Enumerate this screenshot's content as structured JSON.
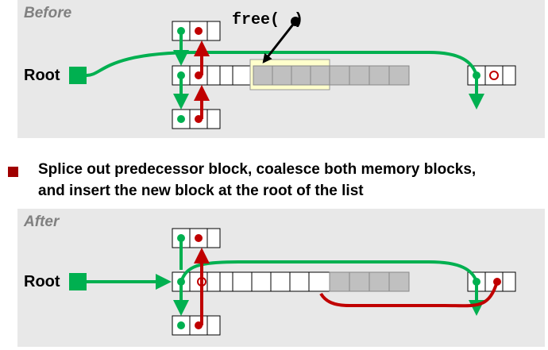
{
  "before": {
    "title": "Before",
    "root_label": "Root",
    "free_call": "free(",
    "free_call_close": ")"
  },
  "bullet": {
    "line1": "Splice out predecessor block, coalesce both memory blocks,",
    "line2": "and insert the new block at the root of the list"
  },
  "after": {
    "title": "After",
    "root_label": "Root"
  },
  "colors": {
    "green": "#00b050",
    "red": "#c00000",
    "gray_fill": "#c0c0c0",
    "highlight": "#ffffcc",
    "panel": "#e8e8e8",
    "bullet": "#a00000"
  }
}
